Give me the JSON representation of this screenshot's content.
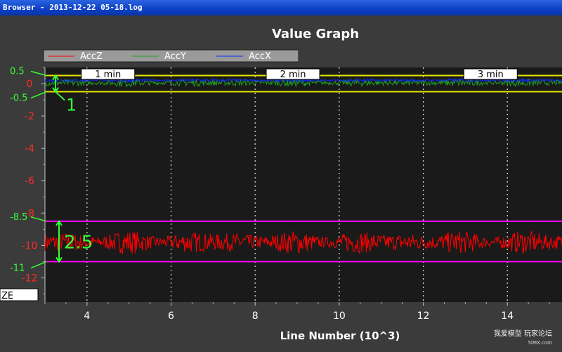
{
  "window": {
    "title": "Browser - 2013-12-22 05-18.log"
  },
  "colors": {
    "accZ": "#ff0000",
    "accY": "#1fa01f",
    "accX": "#0a2cff",
    "band_yellow": "#e6e600",
    "band_magenta": "#ff00ff",
    "annotation_green": "#33ff33"
  },
  "chart_data": {
    "type": "line",
    "title": "Value Graph",
    "xlabel": "Line Number (10^3)",
    "ylabel": "",
    "xlim": [
      3.0,
      15.3
    ],
    "ylim": [
      -13.5,
      1.0
    ],
    "x_ticks": [
      4,
      6,
      8,
      10,
      12,
      14
    ],
    "x_tick_labels": [
      "4",
      "6",
      "8",
      "10",
      "12",
      "14"
    ],
    "y_ticks": [
      0,
      -2,
      -4,
      -6,
      -8,
      -10,
      -12
    ],
    "y_tick_labels": [
      "0",
      "-2",
      "-4",
      "-6",
      "-8",
      "-10",
      "-12"
    ],
    "grid": "vertical dotted",
    "legend": {
      "position": "top-left",
      "entries": [
        "AccZ",
        "AccY",
        "AccX"
      ]
    },
    "series": [
      {
        "name": "AccZ",
        "mean": -9.8,
        "amplitude": 0.75
      },
      {
        "name": "AccY",
        "mean": 0.05,
        "amplitude": 0.25
      },
      {
        "name": "AccX",
        "mean": 0.2,
        "amplitude": 0.12
      }
    ],
    "time_markers": [
      {
        "label": "1 min",
        "x": 4.5
      },
      {
        "label": "2 min",
        "x": 8.9
      },
      {
        "label": "3 min",
        "x": 13.6
      }
    ],
    "bands": [
      {
        "color": "yellow",
        "y_top": 0.5,
        "y_bottom": -0.5
      },
      {
        "color": "magenta",
        "y_top": -8.5,
        "y_bottom": -11
      }
    ],
    "left_annotations": [
      "0.5",
      "-0.5",
      "-8.5",
      "-11"
    ],
    "range_annotations": [
      {
        "label": "1",
        "y_top": 0.5,
        "y_bottom": -0.5
      },
      {
        "label": "2.5",
        "y_top": -8.5,
        "y_bottom": -11
      }
    ],
    "axis_name_box": "ZE"
  },
  "watermark": {
    "line1": "我爱模型 玩家论坛",
    "line2": "5iMX.com"
  }
}
